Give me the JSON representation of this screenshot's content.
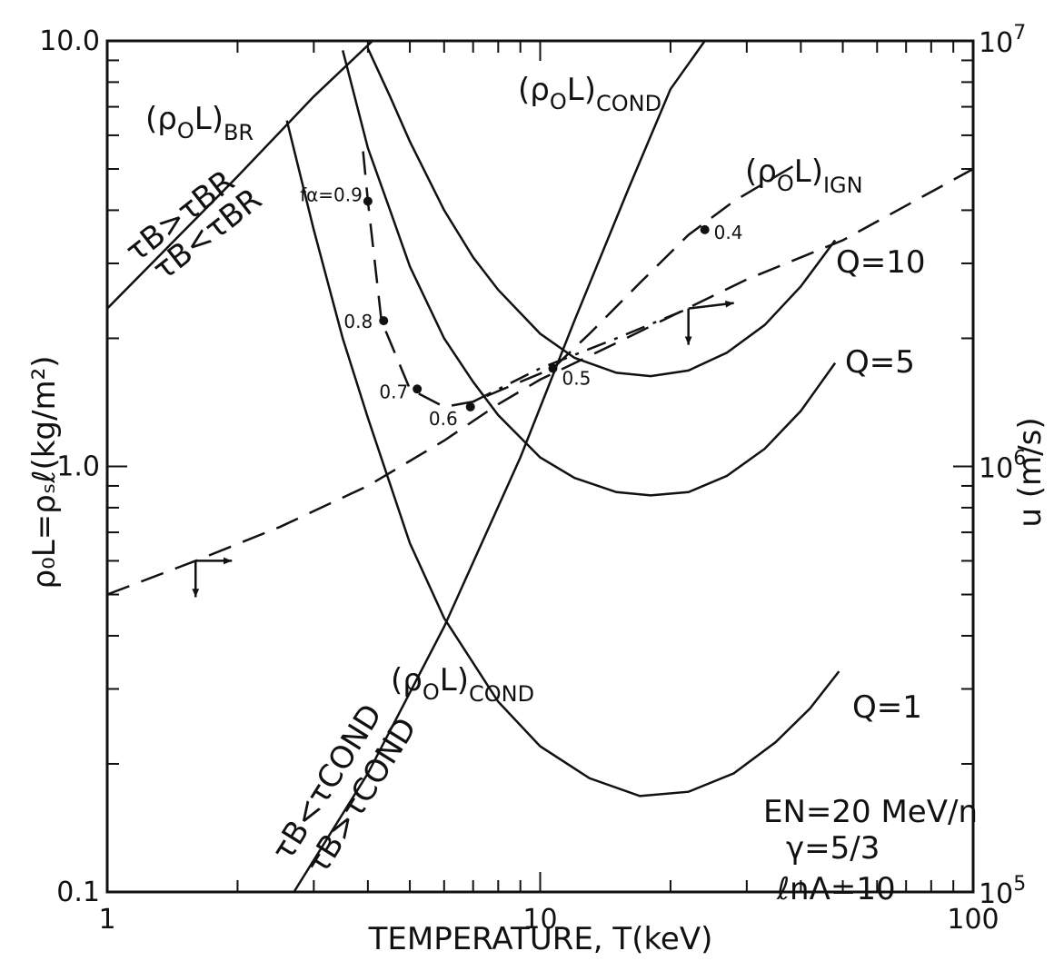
{
  "chart_data": {
    "type": "line",
    "xlabel": "TEMPERATURE, T(keV)",
    "ylabel": "ρ₀L=ρₛℓ(kg/m²)",
    "y2label": "u (m/s)",
    "xscale": "log",
    "yscale": "log",
    "y2scale": "log",
    "xlim": [
      1,
      100
    ],
    "ylim": [
      0.1,
      10.0
    ],
    "y2lim": [
      100000,
      10000000
    ],
    "x_tick_labels": [
      {
        "v": 1,
        "t": "1"
      },
      {
        "v": 10,
        "t": "10"
      },
      {
        "v": 100,
        "t": "100"
      }
    ],
    "y_tick_labels": [
      {
        "v": 0.1,
        "t": "0.1"
      },
      {
        "v": 1.0,
        "t": "1.0"
      },
      {
        "v": 10.0,
        "t": "10.0"
      }
    ],
    "y2_tick_labels": [
      {
        "v": 100000,
        "base": "10",
        "exp": "5"
      },
      {
        "v": 1000000,
        "base": "10",
        "exp": "6"
      },
      {
        "v": 10000000,
        "base": "10",
        "exp": "7"
      }
    ],
    "series": [
      {
        "key": "q1",
        "style": "solid",
        "x": [
          2.6,
          3.0,
          3.5,
          4.0,
          5.0,
          6.0,
          8.0,
          10.0,
          13.0,
          17.0,
          22.0,
          28.0,
          35.0,
          42.0,
          49.0
        ],
        "y": [
          6.5,
          3.6,
          2.0,
          1.3,
          0.66,
          0.44,
          0.28,
          0.22,
          0.185,
          0.168,
          0.172,
          0.19,
          0.225,
          0.27,
          0.33
        ]
      },
      {
        "key": "q5",
        "style": "solid",
        "x": [
          3.5,
          4.0,
          4.5,
          5.0,
          6.0,
          7.0,
          8.0,
          10.0,
          12.0,
          15.0,
          18.0,
          22.0,
          27.0,
          33.0,
          40.0,
          48.0
        ],
        "y": [
          9.5,
          5.6,
          4.0,
          2.95,
          2.0,
          1.58,
          1.32,
          1.05,
          0.94,
          0.87,
          0.855,
          0.87,
          0.95,
          1.1,
          1.35,
          1.75
        ]
      },
      {
        "key": "q10",
        "style": "solid",
        "x": [
          4.0,
          4.5,
          5.0,
          6.0,
          7.0,
          8.0,
          10.0,
          12.0,
          15.0,
          18.0,
          22.0,
          27.0,
          33.0,
          40.0,
          48.0
        ],
        "y": [
          9.6,
          7.4,
          5.8,
          4.0,
          3.1,
          2.6,
          2.05,
          1.8,
          1.66,
          1.63,
          1.68,
          1.85,
          2.15,
          2.65,
          3.4
        ]
      },
      {
        "key": "cond-upper",
        "style": "solid",
        "x": [
          2.7,
          4.0,
          6.0,
          9.0,
          12.0,
          16.0,
          20.0,
          24.0
        ],
        "y": [
          0.1,
          0.19,
          0.42,
          1.05,
          2.2,
          4.5,
          7.7,
          10.0
        ]
      },
      {
        "key": "br-line",
        "style": "solid",
        "x": [
          1.0,
          2.0,
          3.0,
          4.1
        ],
        "y": [
          2.35,
          4.8,
          7.4,
          10.0
        ]
      },
      {
        "key": "dashed-lower",
        "style": "dashed",
        "x": [
          1.0,
          1.6,
          2.5,
          4.0,
          6.0,
          8.0,
          10.0,
          15.0,
          20.0,
          30.0,
          50.0,
          100.0
        ],
        "y": [
          0.5,
          0.6,
          0.72,
          0.9,
          1.15,
          1.4,
          1.6,
          1.95,
          2.25,
          2.75,
          3.4,
          5.0
        ]
      },
      {
        "key": "ign",
        "style": "dashed",
        "x": [
          3.9,
          4.0,
          4.3,
          5.0,
          6.0,
          7.0,
          9.0,
          10.7,
          13.0,
          17.0,
          22.0,
          28.0,
          35.0,
          40.0
        ],
        "y": [
          5.5,
          4.2,
          2.2,
          1.52,
          1.38,
          1.42,
          1.58,
          1.7,
          2.05,
          2.7,
          3.5,
          4.2,
          4.8,
          5.2
        ]
      },
      {
        "key": "ign-dashdot",
        "style": "dashdot",
        "x": [
          7.0,
          10.0,
          15.0,
          22.0
        ],
        "y": [
          1.42,
          1.7,
          2.0,
          2.35
        ]
      }
    ],
    "points": [
      {
        "label": "fα=0.9",
        "x": 4.0,
        "y": 4.2
      },
      {
        "label": "0.8",
        "x": 4.35,
        "y": 2.2
      },
      {
        "label": "0.7",
        "x": 5.2,
        "y": 1.52
      },
      {
        "label": "0.6",
        "x": 6.9,
        "y": 1.38
      },
      {
        "label": "0.5",
        "x": 10.7,
        "y": 1.7
      },
      {
        "label": "0.4",
        "x": 24.0,
        "y": 3.6
      }
    ],
    "annotations": [
      {
        "key": "br",
        "base": "(ρ",
        "sub1": "O",
        "mid": "L)",
        "sub2": "BR"
      },
      {
        "key": "cond-top",
        "base": "(ρ",
        "sub1": "O",
        "mid": "L)",
        "sub2": "COND"
      },
      {
        "key": "ign",
        "base": "(ρ",
        "sub1": "O",
        "mid": "L)",
        "sub2": "IGN"
      },
      {
        "key": "cond-bottom",
        "base": "(ρ",
        "sub1": "O",
        "mid": "L)",
        "sub2": "COND"
      },
      {
        "key": "q10",
        "text": "Q=10"
      },
      {
        "key": "q5",
        "text": "Q=5"
      },
      {
        "key": "q1",
        "text": "Q=1"
      },
      {
        "key": "br-gt",
        "text": "τB>τBR"
      },
      {
        "key": "br-lt",
        "text": "τB<τBR"
      },
      {
        "key": "cond-lt",
        "text": "τB<τCOND"
      },
      {
        "key": "cond-gt",
        "text": "τB>τCOND"
      },
      {
        "key": "params1",
        "text": "EN=20 MeV/n"
      },
      {
        "key": "params2",
        "text": "γ=5/3"
      },
      {
        "key": "params3",
        "text": "ℓnΛ=10"
      }
    ]
  }
}
